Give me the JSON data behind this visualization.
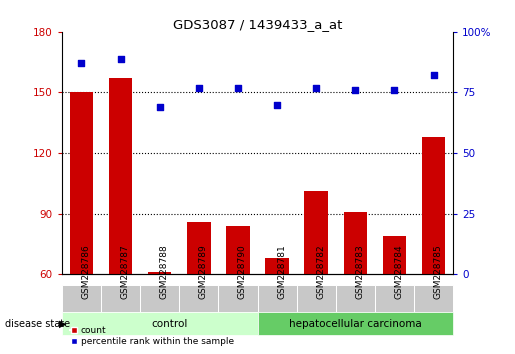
{
  "title": "GDS3087 / 1439433_a_at",
  "samples": [
    "GSM228786",
    "GSM228787",
    "GSM228788",
    "GSM228789",
    "GSM228790",
    "GSM228781",
    "GSM228782",
    "GSM228783",
    "GSM228784",
    "GSM228785"
  ],
  "counts": [
    150,
    157,
    61,
    86,
    84,
    68,
    101,
    91,
    79,
    128
  ],
  "percentiles": [
    87,
    89,
    69,
    77,
    77,
    70,
    77,
    76,
    76,
    82
  ],
  "n_control": 5,
  "left_ylim": [
    60,
    180
  ],
  "left_yticks": [
    60,
    90,
    120,
    150,
    180
  ],
  "right_ylim": [
    0,
    100
  ],
  "right_yticks": [
    0,
    25,
    50,
    75,
    100
  ],
  "bar_color": "#cc0000",
  "scatter_color": "#0000cc",
  "control_color": "#ccffcc",
  "carcinoma_color": "#66cc66",
  "left_tick_color": "#cc0000",
  "right_tick_color": "#0000cc",
  "bg_color": "#ffffff",
  "tick_cell_color": "#c8c8c8",
  "bar_width": 0.6
}
